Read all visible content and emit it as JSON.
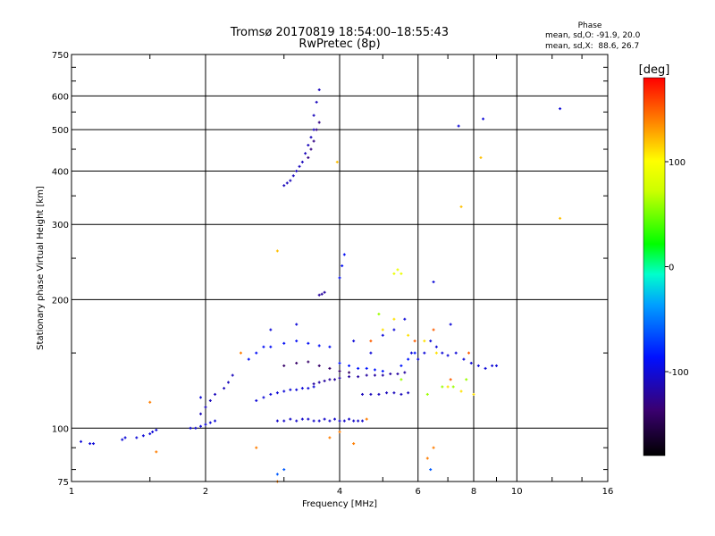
{
  "chart_data": {
    "type": "scatter",
    "title": "Tromsø 20170819 18:54:00–18:55:43",
    "subtitle": "RwPretec (8p)",
    "xlabel": "Frequency [MHz]",
    "ylabel": "Stationary phase Virtual Height [km]",
    "x_scale": "log",
    "y_scale": "log",
    "xlim": [
      1,
      16
    ],
    "ylim": [
      75,
      750
    ],
    "xticks": [
      1,
      2,
      4,
      6,
      8,
      10,
      16
    ],
    "yticks": [
      75,
      100,
      200,
      300,
      400,
      500,
      600,
      750
    ],
    "grid": true,
    "phase_box": {
      "title": "Phase",
      "line_o": "mean, sd,O: -91.9, 20.0",
      "line_x": "mean, sd,X:  88.6, 26.7"
    },
    "colorbar": {
      "label": "[deg]",
      "ticks": [
        "100",
        "0",
        "-100"
      ],
      "tick_values": [
        100,
        0,
        -100
      ],
      "range": [
        -180,
        180
      ]
    },
    "series": [
      {
        "x": [
          1.05,
          1.1,
          1.12,
          1.3,
          1.32,
          1.4,
          1.45,
          1.5,
          1.52,
          1.55,
          1.85,
          1.9,
          1.95,
          2.0,
          2.05,
          2.1
        ],
        "y": [
          93,
          92,
          92,
          94,
          95,
          95,
          96,
          97,
          98,
          99,
          100,
          100,
          101,
          102,
          103,
          104
        ],
        "phase": -100
      },
      {
        "x": [
          1.95,
          2.0,
          2.05,
          2.1,
          2.2,
          2.25,
          2.3
        ],
        "y": [
          108,
          112,
          116,
          120,
          124,
          128,
          133
        ],
        "phase": -110
      },
      {
        "x": [
          2.9,
          3.0,
          3.1,
          3.2,
          3.3,
          3.4,
          3.5,
          3.6,
          3.7,
          3.8,
          3.9,
          4.0,
          4.1,
          4.2,
          4.3,
          4.4,
          4.5
        ],
        "y": [
          104,
          104,
          105,
          104,
          105,
          105,
          104,
          104,
          105,
          104,
          105,
          104,
          104,
          105,
          104,
          104,
          104
        ],
        "phase": -105
      },
      {
        "x": [
          2.6,
          2.7,
          2.8,
          2.9,
          3.0,
          3.1,
          3.2,
          3.3,
          3.4,
          3.5
        ],
        "y": [
          116,
          118,
          120,
          121,
          122,
          123,
          123,
          124,
          124,
          125
        ],
        "phase": -100
      },
      {
        "x": [
          3.5,
          3.6,
          3.7,
          3.8,
          3.9,
          4.0,
          4.2,
          4.4,
          4.6,
          4.8,
          5.0,
          5.2,
          5.4,
          5.6
        ],
        "y": [
          127,
          128,
          129,
          130,
          130,
          131,
          132,
          132,
          133,
          133,
          133,
          134,
          134,
          135
        ],
        "phase": -120
      },
      {
        "x": [
          4.5,
          4.7,
          4.9,
          5.1,
          5.3,
          5.5,
          5.7
        ],
        "y": [
          120,
          120,
          120,
          121,
          121,
          120,
          121
        ],
        "phase": -110
      },
      {
        "x": [
          2.5,
          2.6,
          2.7,
          2.8,
          3.0,
          3.2,
          3.4,
          3.6,
          3.8
        ],
        "y": [
          145,
          150,
          155,
          155,
          158,
          160,
          158,
          156,
          155
        ],
        "phase": -90
      },
      {
        "x": [
          3.0,
          3.2,
          3.4,
          3.6,
          3.8,
          4.0,
          4.2
        ],
        "y": [
          140,
          142,
          143,
          140,
          138,
          136,
          135
        ],
        "phase": -140
      },
      {
        "x": [
          4.0,
          4.2,
          4.4,
          4.6,
          4.8,
          5.0,
          5.5,
          5.7,
          5.9
        ],
        "y": [
          142,
          140,
          138,
          138,
          137,
          136,
          140,
          145,
          150
        ],
        "phase": -85
      },
      {
        "x": [
          3.0,
          3.05,
          3.1,
          3.15,
          3.2,
          3.25,
          3.3,
          3.35,
          3.4,
          3.45,
          3.5,
          3.5,
          3.55,
          3.6
        ],
        "y": [
          370,
          375,
          380,
          390,
          400,
          410,
          420,
          440,
          460,
          480,
          500,
          540,
          580,
          620
        ],
        "phase": -110
      },
      {
        "x": [
          3.4,
          3.45,
          3.5,
          3.55,
          3.6
        ],
        "y": [
          430,
          450,
          470,
          500,
          520
        ],
        "phase": -130
      },
      {
        "x": [
          4.0,
          4.05,
          4.1
        ],
        "y": [
          225,
          240,
          255
        ],
        "phase": -90
      },
      {
        "x": [
          3.6,
          3.65,
          3.7
        ],
        "y": [
          205,
          206,
          208
        ],
        "phase": -120
      },
      {
        "x": [
          1.95,
          2.8,
          3.2,
          4.3,
          4.7,
          5.0,
          5.3,
          5.6,
          5.8,
          6.0,
          6.2,
          6.4,
          6.6,
          6.8,
          7.0,
          7.3,
          7.6,
          7.9,
          8.2,
          8.5,
          8.8,
          9.0
        ],
        "y": [
          118,
          170,
          175,
          160,
          150,
          165,
          170,
          180,
          150,
          145,
          150,
          160,
          155,
          150,
          148,
          150,
          145,
          142,
          140,
          138,
          140,
          140
        ],
        "phase": -100
      },
      {
        "x": [
          5.0,
          5.3,
          5.7,
          6.2,
          6.6,
          7.0,
          7.5,
          8.0
        ],
        "y": [
          170,
          180,
          165,
          160,
          150,
          125,
          122,
          120
        ],
        "phase": 110
      },
      {
        "x": [
          4.9,
          5.5,
          6.3,
          6.8,
          7.2,
          7.7
        ],
        "y": [
          185,
          130,
          120,
          125,
          125,
          130
        ],
        "phase": 60
      },
      {
        "x": [
          4.7,
          5.9,
          6.5,
          7.1,
          7.8
        ],
        "y": [
          160,
          160,
          170,
          130,
          150
        ],
        "phase": 150
      },
      {
        "x": [
          5.3,
          5.4,
          5.5
        ],
        "y": [
          230,
          235,
          230
        ],
        "phase": 90
      },
      {
        "x": [
          6.5,
          7.1,
          7.4,
          8.4,
          12.5
        ],
        "y": [
          220,
          175,
          510,
          530,
          560
        ],
        "phase": -100
      },
      {
        "x": [
          8.3,
          7.5,
          12.5,
          3.95,
          2.9
        ],
        "y": [
          430,
          330,
          310,
          420,
          260
        ],
        "phase": 120
      },
      {
        "x": [
          1.5,
          1.55,
          2.4,
          2.6,
          2.9,
          3.8,
          4.0,
          4.3,
          4.6,
          6.3,
          6.5
        ],
        "y": [
          115,
          88,
          150,
          90,
          75,
          95,
          98,
          92,
          105,
          85,
          90
        ],
        "phase": 140
      },
      {
        "x": [
          2.9,
          3.0,
          6.4
        ],
        "y": [
          78,
          80,
          80
        ],
        "phase": -60
      }
    ]
  }
}
